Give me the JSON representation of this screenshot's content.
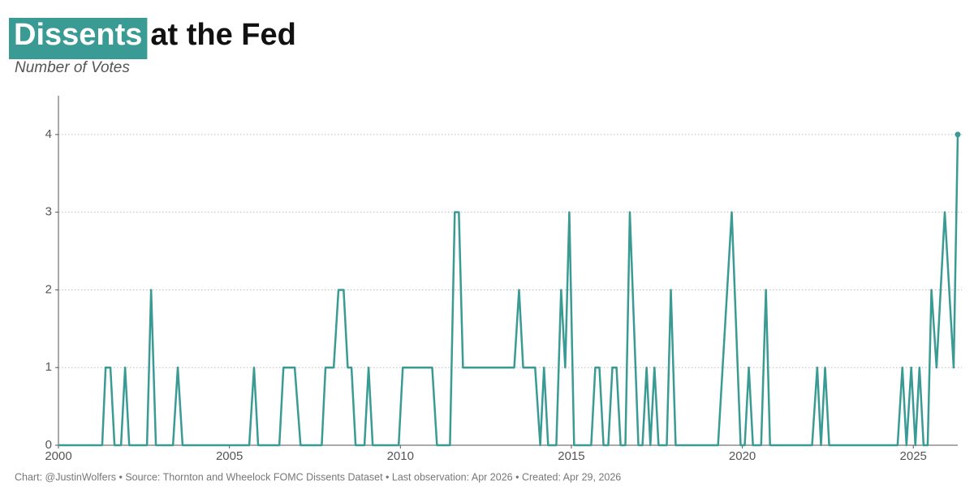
{
  "chart_data": {
    "type": "line",
    "title_highlight": "Dissents",
    "title": "at the Fed",
    "subtitle": "Number of Votes",
    "caption": "Chart: @JustinWolfers • Source: Thornton and Wheelock FOMC Dissents Dataset • Last observation: Apr 2026 • Created: Apr 29, 2026",
    "color": "#3a9a94",
    "grid": true,
    "xlim": [
      2000,
      2026.3
    ],
    "xticks": [
      2000,
      2005,
      2010,
      2015,
      2020,
      2025
    ],
    "ylim": [
      0,
      4.5
    ],
    "yticks": [
      0,
      1,
      2,
      3,
      4
    ],
    "x": [
      2000,
      2001.28,
      2001.38,
      2001.52,
      2001.64,
      2001.83,
      2001.95,
      2002.07,
      2002.59,
      2002.71,
      2002.85,
      2003.35,
      2003.49,
      2003.63,
      2005.58,
      2005.72,
      2005.84,
      2006.46,
      2006.58,
      2006.91,
      2007.08,
      2007.7,
      2007.81,
      2008.05,
      2008.19,
      2008.34,
      2008.46,
      2008.57,
      2008.69,
      2008.95,
      2009.07,
      2009.19,
      2009.95,
      2010.07,
      2010.93,
      2011.07,
      2011.45,
      2011.59,
      2011.71,
      2011.83,
      2013.33,
      2013.47,
      2013.59,
      2013.94,
      2014.09,
      2014.2,
      2014.32,
      2014.56,
      2014.7,
      2014.82,
      2014.94,
      2015.08,
      2015.58,
      2015.7,
      2015.82,
      2015.94,
      2016.08,
      2016.2,
      2016.32,
      2016.44,
      2016.58,
      2016.71,
      2016.96,
      2017.08,
      2017.2,
      2017.31,
      2017.43,
      2017.55,
      2017.79,
      2017.91,
      2018.05,
      2019.29,
      2019.69,
      2019.95,
      2020.07,
      2020.19,
      2020.31,
      2020.55,
      2020.69,
      2020.81,
      2022.04,
      2022.19,
      2022.3,
      2022.42,
      2022.54,
      2024.54,
      2024.68,
      2024.8,
      2024.94,
      2025.06,
      2025.18,
      2025.3,
      2025.42,
      2025.53,
      2025.68,
      2025.92,
      2026.18,
      2026.3
    ],
    "values": [
      0,
      0,
      1,
      1,
      0,
      0,
      1,
      0,
      0,
      2,
      0,
      0,
      1,
      0,
      0,
      1,
      0,
      0,
      1,
      1,
      0,
      0,
      1,
      1,
      2,
      2,
      1,
      1,
      0,
      0,
      1,
      0,
      0,
      1,
      1,
      0,
      0,
      3,
      3,
      1,
      1,
      2,
      1,
      1,
      0,
      1,
      0,
      0,
      2,
      1,
      3,
      0,
      0,
      1,
      1,
      0,
      0,
      1,
      1,
      0,
      0,
      3,
      0,
      0,
      1,
      0,
      1,
      0,
      0,
      2,
      0,
      0,
      3,
      0,
      0,
      1,
      0,
      0,
      2,
      0,
      0,
      1,
      0,
      1,
      0,
      0,
      1,
      0,
      1,
      0,
      1,
      0,
      0,
      2,
      1,
      3,
      1,
      4
    ]
  }
}
